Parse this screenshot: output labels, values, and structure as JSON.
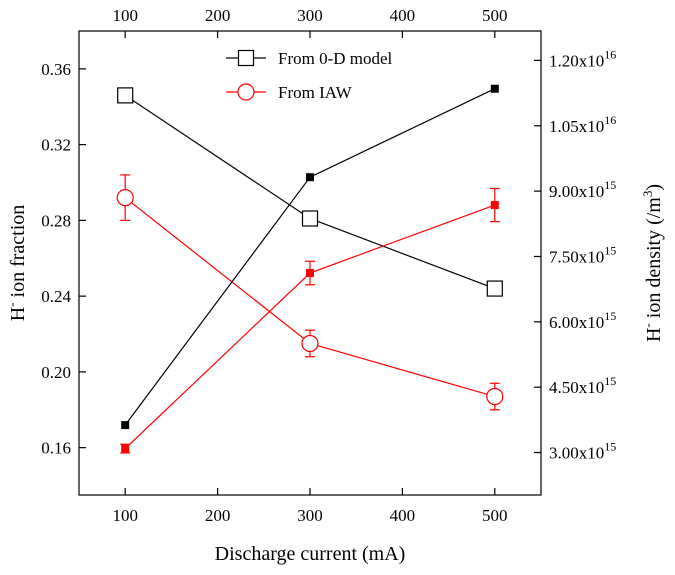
{
  "chart_data": {
    "type": "line",
    "x": [
      100,
      300,
      500
    ],
    "xlabel": "Discharge current (mA)",
    "xlim": [
      50,
      550
    ],
    "xticks": [
      100,
      200,
      300,
      400,
      500
    ],
    "xtick_labels": [
      "100",
      "200",
      "300",
      "400",
      "500"
    ],
    "top_axis_ticks": true,
    "ylabel_left": {
      "main": "H",
      "sup": "-",
      "rest": " ion fraction"
    },
    "ylim_left": [
      0.135,
      0.38
    ],
    "yticks_left": [
      0.16,
      0.2,
      0.24,
      0.28,
      0.32,
      0.36
    ],
    "ytick_labels_left": [
      "0.16",
      "0.20",
      "0.24",
      "0.28",
      "0.32",
      "0.36"
    ],
    "ylabel_right": {
      "main": "H",
      "sup": "-",
      "rest": " ion density (/m",
      "sup2": "3",
      "end": ")"
    },
    "ylim_right_scaled": [
      2.025,
      12.675
    ],
    "yticks_right": [
      3.0,
      4.5,
      6.0,
      7.5,
      9.0,
      10.5,
      12.0
    ],
    "ytick_labels_right": [
      {
        "mant": "3.00x10",
        "exp": "15"
      },
      {
        "mant": "4.50x10",
        "exp": "15"
      },
      {
        "mant": "6.00x10",
        "exp": "15"
      },
      {
        "mant": "7.50x10",
        "exp": "15"
      },
      {
        "mant": "9.00x10",
        "exp": "15"
      },
      {
        "mant": "1.05x10",
        "exp": "16"
      },
      {
        "mant": "1.20x10",
        "exp": "16"
      }
    ],
    "right_scale_factor": 1000000000000000.0,
    "grid": false,
    "legend_position": "top-center",
    "series": [
      {
        "name": "From 0-D model",
        "axis": "left",
        "color": "#000000",
        "marker": "open-square",
        "values": [
          0.346,
          0.281,
          0.244
        ],
        "errors": null
      },
      {
        "name": "From IAW",
        "axis": "left",
        "color": "#ff0000",
        "marker": "open-circle",
        "values": [
          0.292,
          0.215,
          0.187
        ],
        "errors": [
          0.012,
          0.007,
          0.007
        ]
      },
      {
        "axis": "right",
        "color": "#000000",
        "marker": "filled-square",
        "values": [
          3.63,
          9.32,
          11.35
        ],
        "errors": null
      },
      {
        "axis": "right",
        "color": "#ff0000",
        "marker": "filled-square",
        "values": [
          3.09,
          7.12,
          8.68
        ],
        "errors": [
          0.1,
          0.27,
          0.38
        ]
      }
    ]
  }
}
